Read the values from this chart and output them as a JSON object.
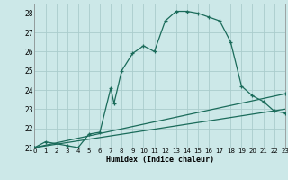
{
  "xlabel": "Humidex (Indice chaleur)",
  "bg_color": "#cce8e8",
  "grid_color": "#aacccc",
  "line_color": "#1a6b5a",
  "line1_x": [
    0,
    1,
    3,
    4,
    5,
    6,
    7,
    7.3,
    8,
    9,
    10,
    11,
    12,
    13,
    14,
    15,
    16,
    17,
    18,
    19,
    20,
    21,
    22,
    23
  ],
  "line1_y": [
    21.0,
    21.3,
    21.1,
    21.0,
    21.7,
    21.8,
    24.1,
    23.3,
    25.0,
    25.9,
    26.3,
    26.0,
    27.6,
    28.1,
    28.1,
    28.0,
    27.8,
    27.6,
    26.5,
    24.2,
    23.7,
    23.4,
    22.9,
    22.8
  ],
  "line2_x": [
    0,
    23
  ],
  "line2_y": [
    21.0,
    23.8
  ],
  "line3_x": [
    0,
    23
  ],
  "line3_y": [
    21.0,
    23.0
  ],
  "xlim": [
    0,
    23
  ],
  "ylim": [
    21.0,
    28.5
  ],
  "yticks": [
    21,
    22,
    23,
    24,
    25,
    26,
    27,
    28
  ],
  "xticks": [
    0,
    1,
    2,
    3,
    4,
    5,
    6,
    7,
    8,
    9,
    10,
    11,
    12,
    13,
    14,
    15,
    16,
    17,
    18,
    19,
    20,
    21,
    22,
    23
  ]
}
